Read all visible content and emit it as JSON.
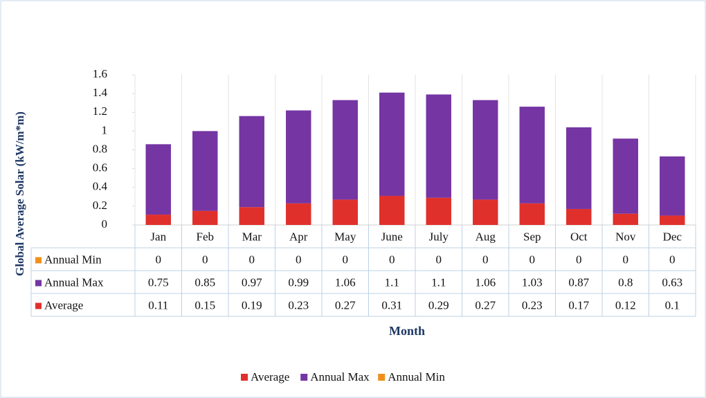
{
  "chart_data": {
    "type": "stacked_bar",
    "y_label": "Global Average Solar (kW/m*m)",
    "x_label": "Month",
    "categories": [
      "Jan",
      "Feb",
      "Mar",
      "Apr",
      "May",
      "June",
      "July",
      "Aug",
      "Sep",
      "Oct",
      "Nov",
      "Dec"
    ],
    "series": [
      {
        "name": "Average",
        "color": "#e0302c",
        "values": [
          0.11,
          0.15,
          0.19,
          0.23,
          0.27,
          0.31,
          0.29,
          0.27,
          0.23,
          0.17,
          0.12,
          0.1
        ]
      },
      {
        "name": "Annual Max",
        "color": "#7535a3",
        "values": [
          0.75,
          0.85,
          0.97,
          0.99,
          1.06,
          1.1,
          1.1,
          1.06,
          1.03,
          0.87,
          0.8,
          0.63
        ]
      },
      {
        "name": "Annual Min",
        "color": "#f0901c",
        "values": [
          0,
          0,
          0,
          0,
          0,
          0,
          0,
          0,
          0,
          0,
          0,
          0
        ]
      }
    ],
    "ylim": [
      0,
      1.6
    ],
    "yticks": [
      0,
      0.2,
      0.4,
      0.6,
      0.8,
      1,
      1.2,
      1.4,
      1.6
    ],
    "data_table": true,
    "legend": "bottom"
  }
}
